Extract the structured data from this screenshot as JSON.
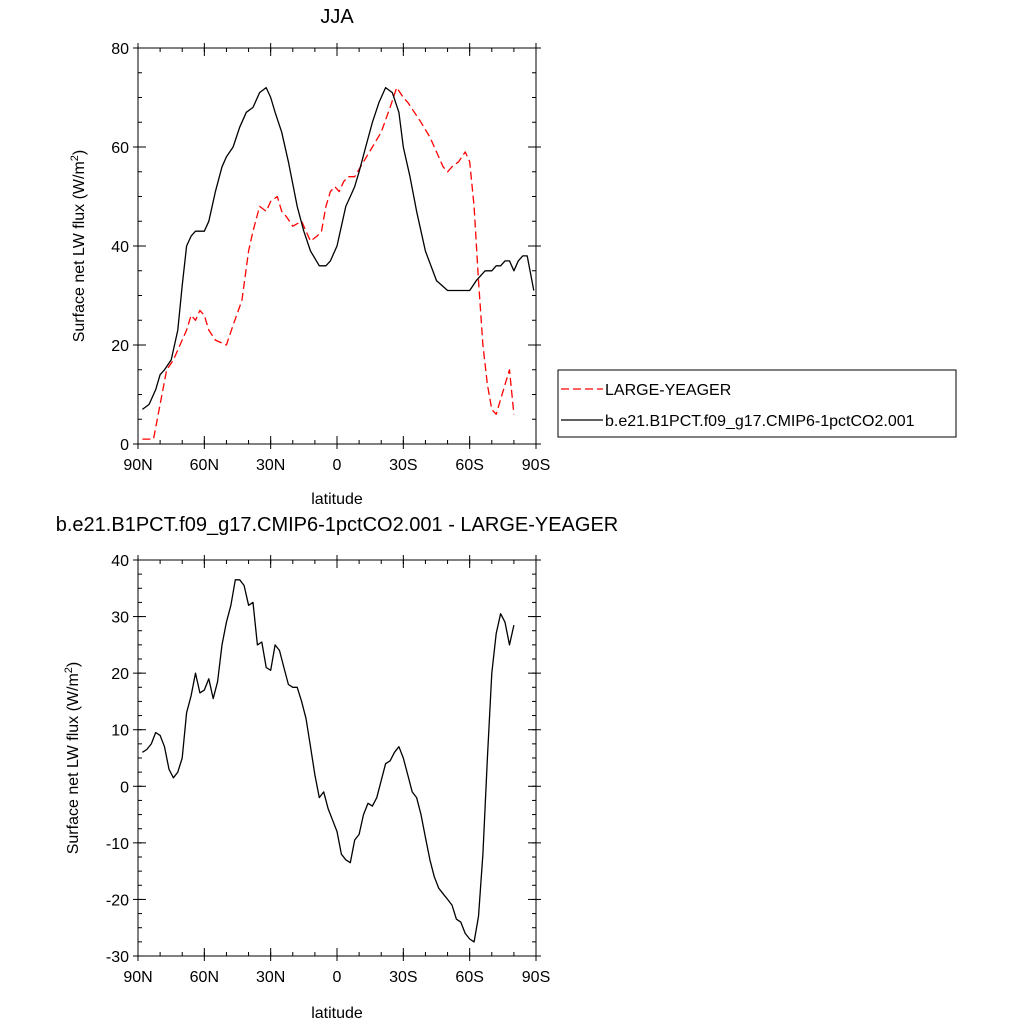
{
  "chart_data": [
    {
      "type": "line",
      "title": "JJA",
      "xlabel": "latitude",
      "ylabel": "Surface net LW flux (W/m",
      "ylabel_sup": "2",
      "ylabel_close": ")",
      "xlim": [
        -90,
        90
      ],
      "ylim": [
        0,
        80
      ],
      "x_ticks": [
        -90,
        -60,
        -30,
        0,
        30,
        60,
        90
      ],
      "x_tick_labels": [
        "90N",
        "60N",
        "30N",
        "0",
        "30S",
        "60S",
        "90S"
      ],
      "y_ticks": [
        0,
        20,
        40,
        60,
        80
      ],
      "y_tick_labels": [
        "0",
        "20",
        "40",
        "60",
        "80"
      ],
      "grid": false,
      "legend_position": "right",
      "series": [
        {
          "name": "LARGE-YEAGER",
          "color": "#ff0000",
          "dash": "dashed",
          "x": [
            -88,
            -83,
            -80,
            -77,
            -74,
            -71,
            -68,
            -66,
            -64,
            -62,
            -60,
            -58,
            -55,
            -50,
            -47,
            -43,
            -40,
            -38,
            -35,
            -32,
            -30,
            -27,
            -25,
            -23,
            -20,
            -16,
            -12,
            -9,
            -7,
            -5,
            -3,
            -1,
            1,
            3,
            5,
            8,
            12,
            16,
            20,
            24,
            27,
            30,
            32,
            35,
            38,
            42,
            45,
            48,
            50,
            52,
            55,
            58,
            60,
            62,
            64,
            66,
            68,
            70,
            72,
            74,
            76,
            78,
            80
          ],
          "values": [
            1,
            1,
            8,
            15,
            17,
            20,
            23,
            26,
            25,
            27,
            26,
            23,
            21,
            20,
            24,
            29,
            39,
            43,
            48,
            47,
            49,
            50,
            47,
            46,
            44,
            45,
            41,
            42,
            43,
            48,
            51,
            52,
            51,
            53,
            54,
            54,
            57,
            60,
            63,
            68,
            72,
            70,
            69,
            67,
            65,
            62,
            59,
            56,
            55,
            56,
            57,
            59,
            57,
            48,
            33,
            20,
            12,
            7,
            6,
            9,
            12,
            15,
            6
          ]
        },
        {
          "name": "b.e21.B1PCT.f09_g17.CMIP6-1pctCO2.001",
          "color": "#000000",
          "dash": "solid",
          "x": [
            -88,
            -85,
            -82,
            -80,
            -78,
            -75,
            -72,
            -70,
            -68,
            -66,
            -64,
            -60,
            -58,
            -55,
            -52,
            -50,
            -47,
            -44,
            -41,
            -38,
            -35,
            -32,
            -30,
            -28,
            -25,
            -22,
            -18,
            -15,
            -12,
            -8,
            -5,
            -3,
            0,
            2,
            4,
            6,
            8,
            10,
            13,
            16,
            19,
            22,
            25,
            28,
            30,
            33,
            36,
            40,
            45,
            50,
            55,
            60,
            63,
            65,
            67,
            70,
            72,
            74,
            76,
            78,
            80,
            82,
            84,
            86,
            89
          ],
          "values": [
            7,
            8,
            11,
            14,
            15,
            17,
            23,
            32,
            40,
            42,
            43,
            43,
            45,
            51,
            56,
            58,
            60,
            64,
            67,
            68,
            71,
            72,
            70,
            67,
            63,
            57,
            48,
            43,
            39,
            36,
            36,
            37,
            40,
            44,
            48,
            50,
            52,
            55,
            60,
            65,
            69,
            72,
            71,
            67,
            60,
            54,
            47,
            39,
            33,
            31,
            31,
            31,
            33,
            34,
            35,
            35,
            36,
            36,
            37,
            37,
            35,
            37,
            38,
            38,
            31
          ]
        }
      ]
    },
    {
      "type": "line",
      "title": "b.e21.B1PCT.f09_g17.CMIP6-1pctCO2.001 - LARGE-YEAGER",
      "xlabel": "latitude",
      "ylabel": "Surface net LW flux (W/m",
      "ylabel_sup": "2",
      "ylabel_close": ")",
      "xlim": [
        -90,
        90
      ],
      "ylim": [
        -30,
        40
      ],
      "x_ticks": [
        -90,
        -60,
        -30,
        0,
        30,
        60,
        90
      ],
      "x_tick_labels": [
        "90N",
        "60N",
        "30N",
        "0",
        "30S",
        "60S",
        "90S"
      ],
      "y_ticks": [
        -30,
        -20,
        -10,
        0,
        10,
        20,
        30,
        40
      ],
      "y_tick_labels": [
        "-30",
        "-20",
        "-10",
        "0",
        "10",
        "20",
        "30",
        "40"
      ],
      "grid": false,
      "series": [
        {
          "color": "#000000",
          "dash": "solid",
          "x": [
            -88,
            -86,
            -84,
            -82,
            -80,
            -78,
            -76,
            -74,
            -72,
            -70,
            -68,
            -66,
            -64,
            -62,
            -60,
            -58,
            -56,
            -54,
            -52,
            -50,
            -48,
            -46,
            -44,
            -42,
            -40,
            -38,
            -36,
            -34,
            -32,
            -30,
            -28,
            -26,
            -24,
            -22,
            -20,
            -18,
            -16,
            -14,
            -12,
            -10,
            -8,
            -6,
            -4,
            -2,
            0,
            2,
            4,
            6,
            8,
            10,
            12,
            14,
            16,
            18,
            20,
            22,
            24,
            26,
            28,
            30,
            32,
            34,
            36,
            38,
            40,
            42,
            44,
            46,
            48,
            50,
            52,
            54,
            56,
            58,
            60,
            62,
            64,
            66,
            68,
            70,
            72,
            74,
            76,
            78,
            80
          ],
          "values": [
            6,
            6.5,
            7.5,
            9.5,
            9,
            7,
            3,
            1.5,
            2.5,
            5,
            13,
            16,
            20,
            16.5,
            17,
            19,
            15.5,
            18.5,
            25,
            29,
            32,
            36.5,
            36.5,
            35.5,
            32,
            32.5,
            25,
            25.5,
            21,
            20.5,
            25,
            24,
            21,
            18,
            17.5,
            17.5,
            15,
            12,
            7,
            2,
            -2,
            -1,
            -4,
            -6,
            -8,
            -12,
            -13,
            -13.5,
            -9.5,
            -8.5,
            -5,
            -3,
            -3.5,
            -2,
            1,
            4,
            4.5,
            6,
            7,
            5,
            2,
            -1,
            -2,
            -5,
            -9,
            -13,
            -16,
            -18,
            -19,
            -20,
            -21,
            -23.5,
            -24,
            -26,
            -27,
            -27.5,
            -23,
            -12,
            5,
            20,
            27,
            30.5,
            29,
            25,
            28.5
          ]
        }
      ]
    }
  ]
}
